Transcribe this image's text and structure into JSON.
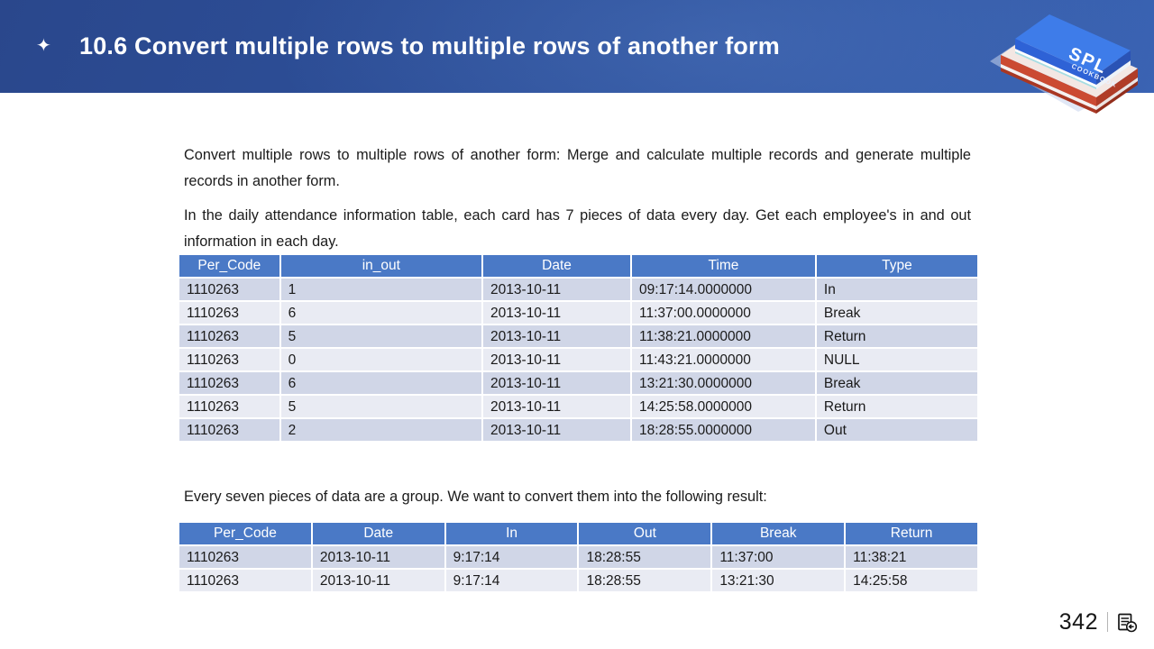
{
  "header": {
    "title": "10.6 Convert multiple rows to multiple rows of another form",
    "bullet_glyph": "✦",
    "logo": {
      "title": "SPL",
      "subtitle": "COOKBOOK"
    }
  },
  "body": {
    "paragraph1": "Convert multiple rows to multiple rows of another form: Merge and calculate multiple records and generate multiple records in another form.",
    "paragraph2": "In the daily attendance information table, each card has 7 pieces of data every day. Get each employee's in and out information in each day.",
    "lead_in": "Every seven pieces of data are a group. We want to convert them into the following result:"
  },
  "source_table": {
    "columns": [
      "Per_Code",
      "in_out",
      "Date",
      "Time",
      "Type"
    ],
    "rows": [
      [
        "1110263",
        "1",
        "2013-10-11",
        "09:17:14.0000000",
        "In"
      ],
      [
        "1110263",
        "6",
        "2013-10-11",
        "11:37:00.0000000",
        "Break"
      ],
      [
        "1110263",
        "5",
        "2013-10-11",
        "11:38:21.0000000",
        "Return"
      ],
      [
        "1110263",
        "0",
        "2013-10-11",
        "11:43:21.0000000",
        "NULL"
      ],
      [
        "1110263",
        "6",
        "2013-10-11",
        "13:21:30.0000000",
        "Break"
      ],
      [
        "1110263",
        "5",
        "2013-10-11",
        "14:25:58.0000000",
        "Return"
      ],
      [
        "1110263",
        "2",
        "2013-10-11",
        "18:28:55.0000000",
        "Out"
      ]
    ]
  },
  "result_table": {
    "columns": [
      "Per_Code",
      "Date",
      "In",
      "Out",
      "Break",
      "Return"
    ],
    "rows": [
      [
        "1110263",
        "2013-10-11",
        "9:17:14",
        "18:28:55",
        "11:37:00",
        "11:38:21"
      ],
      [
        "1110263",
        "2013-10-11",
        "9:17:14",
        "18:28:55",
        "13:21:30",
        "14:25:58"
      ]
    ]
  },
  "footer": {
    "page_number": "342",
    "icon": "document-return-icon"
  },
  "colors": {
    "banner_dark": "#2a478c",
    "banner_light": "#3a63b3",
    "table_header": "#4a79c6",
    "row_dark": "#d0d6e7",
    "row_light": "#e9ebf3",
    "book_blue": "#3e7ce9",
    "book_red": "#cb4a32"
  }
}
